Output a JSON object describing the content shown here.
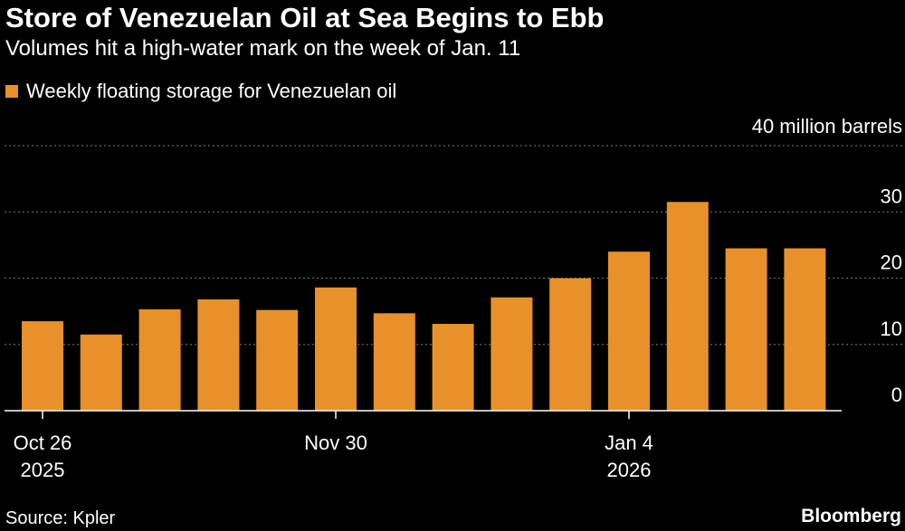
{
  "header": {
    "title": "Store of Venezuelan Oil at Sea Begins to Ebb",
    "subtitle": "Volumes hit a high-water mark on the week of Jan. 11"
  },
  "footer": {
    "source": "Source: Kpler",
    "brand": "Bloomberg"
  },
  "colors": {
    "bar": "#e8902a",
    "grid": "#666666",
    "axis": "#ffffff",
    "background": "#000000"
  },
  "chart_data": {
    "type": "bar",
    "series": [
      {
        "name": "Weekly floating storage for Venezuelan oil",
        "values": [
          13.5,
          11.5,
          15.3,
          16.8,
          15.2,
          18.6,
          14.7,
          13.1,
          17.1,
          20.0,
          24.0,
          31.5,
          24.5,
          24.5
        ]
      }
    ],
    "ylim": [
      0,
      40
    ],
    "y_ticks": [
      {
        "value": 0,
        "label": "0"
      },
      {
        "value": 10,
        "label": "10"
      },
      {
        "value": 20,
        "label": "20"
      },
      {
        "value": 30,
        "label": "30"
      },
      {
        "value": 40,
        "label": "40 million barrels"
      }
    ],
    "x_ticks": [
      {
        "index": 0,
        "label": "Oct 26",
        "year": "2025"
      },
      {
        "index": 5,
        "label": "Nov 30",
        "year": ""
      },
      {
        "index": 10,
        "label": "Jan 4",
        "year": "2026"
      }
    ],
    "grid": true,
    "legend_position": "top-left"
  }
}
